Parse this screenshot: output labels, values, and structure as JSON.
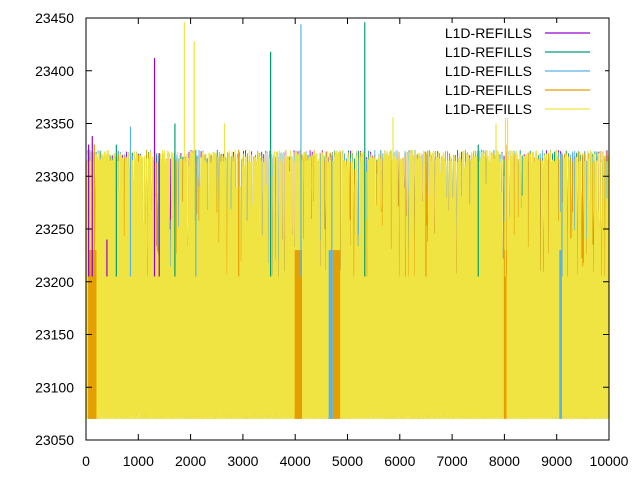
{
  "chart_data": {
    "type": "line",
    "title": "",
    "xlabel": "",
    "ylabel": "",
    "xlim": [
      0,
      10000
    ],
    "ylim": [
      23050,
      23450
    ],
    "x_ticks": [
      0,
      1000,
      2000,
      3000,
      4000,
      5000,
      6000,
      7000,
      8000,
      9000,
      10000
    ],
    "y_ticks": [
      23050,
      23100,
      23150,
      23200,
      23250,
      23300,
      23350,
      23400,
      23450
    ],
    "grid": false,
    "legend_position": "top-right",
    "baseline_low": 23070,
    "typical_high": 23325,
    "series": [
      {
        "name": "L1D-REFILLS",
        "color": "#9400d3",
        "spikes": [
          [
            50,
            23330
          ],
          [
            120,
            23338
          ],
          [
            400,
            23240
          ],
          [
            1310,
            23412
          ],
          [
            1400,
            23322
          ]
        ]
      },
      {
        "name": "L1D-REFILLS",
        "color": "#009e73",
        "spikes": [
          [
            580,
            23330
          ],
          [
            1700,
            23350
          ],
          [
            3530,
            23418
          ],
          [
            5330,
            23446
          ],
          [
            7500,
            23330
          ]
        ]
      },
      {
        "name": "L1D-REFILLS",
        "color": "#56b4e9",
        "spikes": [
          [
            850,
            23347
          ],
          [
            2100,
            23325
          ],
          [
            4110,
            23444
          ],
          [
            4700,
            23320
          ],
          [
            9100,
            23322
          ]
        ]
      },
      {
        "name": "L1D-REFILLS",
        "color": "#e69f00",
        "spikes": [
          [
            160,
            23330
          ],
          [
            2920,
            23325
          ],
          [
            6500,
            23322
          ],
          [
            8050,
            23330
          ]
        ]
      },
      {
        "name": "L1D-REFILLS",
        "color": "#f0e442",
        "spikes": [
          [
            1880,
            23446
          ],
          [
            2070,
            23428
          ],
          [
            2650,
            23350
          ],
          [
            5870,
            23356
          ],
          [
            7840,
            23350
          ],
          [
            8020,
            23400
          ],
          [
            8060,
            23390
          ]
        ]
      }
    ],
    "bands": [
      {
        "color": "#e69f00",
        "x0": 40,
        "x1": 200
      },
      {
        "color": "#e69f00",
        "x0": 3990,
        "x1": 4130
      },
      {
        "color": "#56b4e9",
        "x0": 4640,
        "x1": 4720
      },
      {
        "color": "#e69f00",
        "x0": 4720,
        "x1": 4860
      },
      {
        "color": "#e69f00",
        "x0": 7990,
        "x1": 8040
      },
      {
        "color": "#56b4e9",
        "x0": 9050,
        "x1": 9100
      }
    ]
  }
}
